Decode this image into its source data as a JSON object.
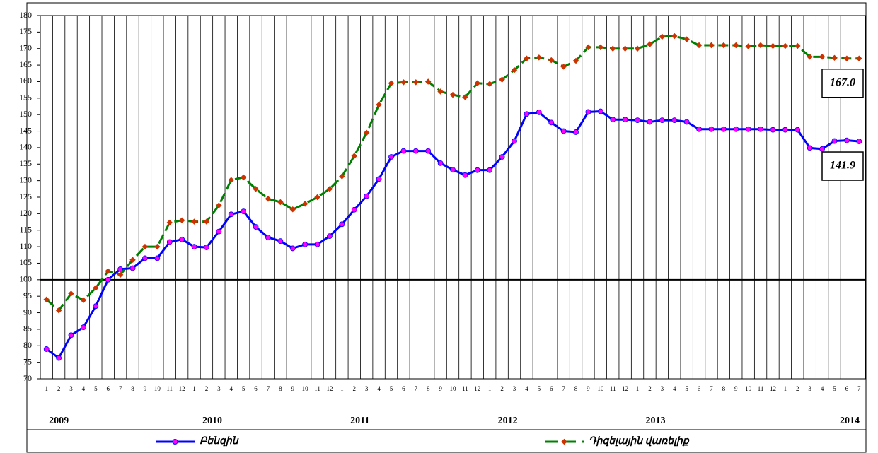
{
  "chart_data": {
    "type": "line",
    "categories": [
      "1",
      "2",
      "3",
      "4",
      "5",
      "6",
      "7",
      "8",
      "9",
      "10",
      "11",
      "12",
      "1",
      "2",
      "3",
      "4",
      "5",
      "6",
      "7",
      "8",
      "9",
      "10",
      "11",
      "12",
      "1",
      "2",
      "3",
      "4",
      "5",
      "6",
      "7",
      "8",
      "9",
      "10",
      "11",
      "12",
      "1",
      "2",
      "3",
      "4",
      "5",
      "6",
      "7",
      "8",
      "9",
      "10",
      "11",
      "12",
      "1",
      "2",
      "3",
      "4",
      "5",
      "6",
      "7",
      "8",
      "9",
      "10",
      "11",
      "12",
      "1",
      "2",
      "3",
      "4",
      "5",
      "6",
      "7"
    ],
    "years": [
      "2009",
      "2010",
      "2011",
      "2012",
      "2013",
      "2014"
    ],
    "series": [
      {
        "name": "Բենզին",
        "color": "#0000ff",
        "marker_color": "#ff00ff",
        "values": [
          79,
          76.3,
          83.2,
          85.6,
          92,
          100,
          103.2,
          103.5,
          106.5,
          106.5,
          111.4,
          112.2,
          110,
          109.8,
          114.6,
          119.8,
          120.7,
          116,
          112.8,
          111.7,
          109.5,
          110.7,
          110.7,
          113.2,
          116.8,
          121.2,
          125.3,
          130.5,
          137.2,
          139,
          139,
          139,
          135.3,
          133.3,
          131.7,
          133.2,
          133.2,
          137.2,
          142,
          150.2,
          150.7,
          147.6,
          145,
          144.7,
          150.8,
          151,
          148.5,
          148.5,
          148.3,
          147.8,
          148.3,
          148.3,
          147.8,
          145.6,
          145.6,
          145.6,
          145.6,
          145.6,
          145.6,
          145.4,
          145.4,
          145.4,
          139.9,
          139.6,
          142,
          142.2,
          141.9
        ]
      },
      {
        "name": "Դիզելային վառելիք",
        "color": "#008000",
        "marker_color": "#cc3300",
        "dashed": true,
        "values": [
          94,
          90.7,
          95.8,
          93.8,
          97.5,
          102.6,
          101.5,
          106,
          110,
          110,
          117.3,
          118,
          117.6,
          117.6,
          122.5,
          130.2,
          131,
          127.5,
          124.5,
          123.5,
          121.3,
          123,
          125,
          127.5,
          131.3,
          137.5,
          144.5,
          153,
          159.5,
          159.8,
          159.8,
          160,
          157,
          156,
          155.3,
          159.5,
          159.3,
          160.6,
          163.5,
          167,
          167.3,
          166.5,
          164.5,
          166.3,
          170.4,
          170.4,
          170,
          170,
          170,
          171.3,
          173.6,
          173.8,
          172.8,
          171,
          171,
          171,
          171,
          170.7,
          171,
          170.8,
          170.8,
          170.8,
          167.5,
          167.5,
          167.2,
          167,
          167
        ]
      }
    ],
    "annotations": [
      {
        "series": 1,
        "text": "167.0"
      },
      {
        "series": 0,
        "text": "141.9"
      }
    ],
    "ylim": [
      70,
      180
    ],
    "yticks": [
      70,
      75,
      80,
      85,
      90,
      95,
      100,
      105,
      110,
      115,
      120,
      125,
      130,
      135,
      140,
      145,
      150,
      155,
      160,
      165,
      170,
      175,
      180
    ],
    "reference_line": 100
  }
}
